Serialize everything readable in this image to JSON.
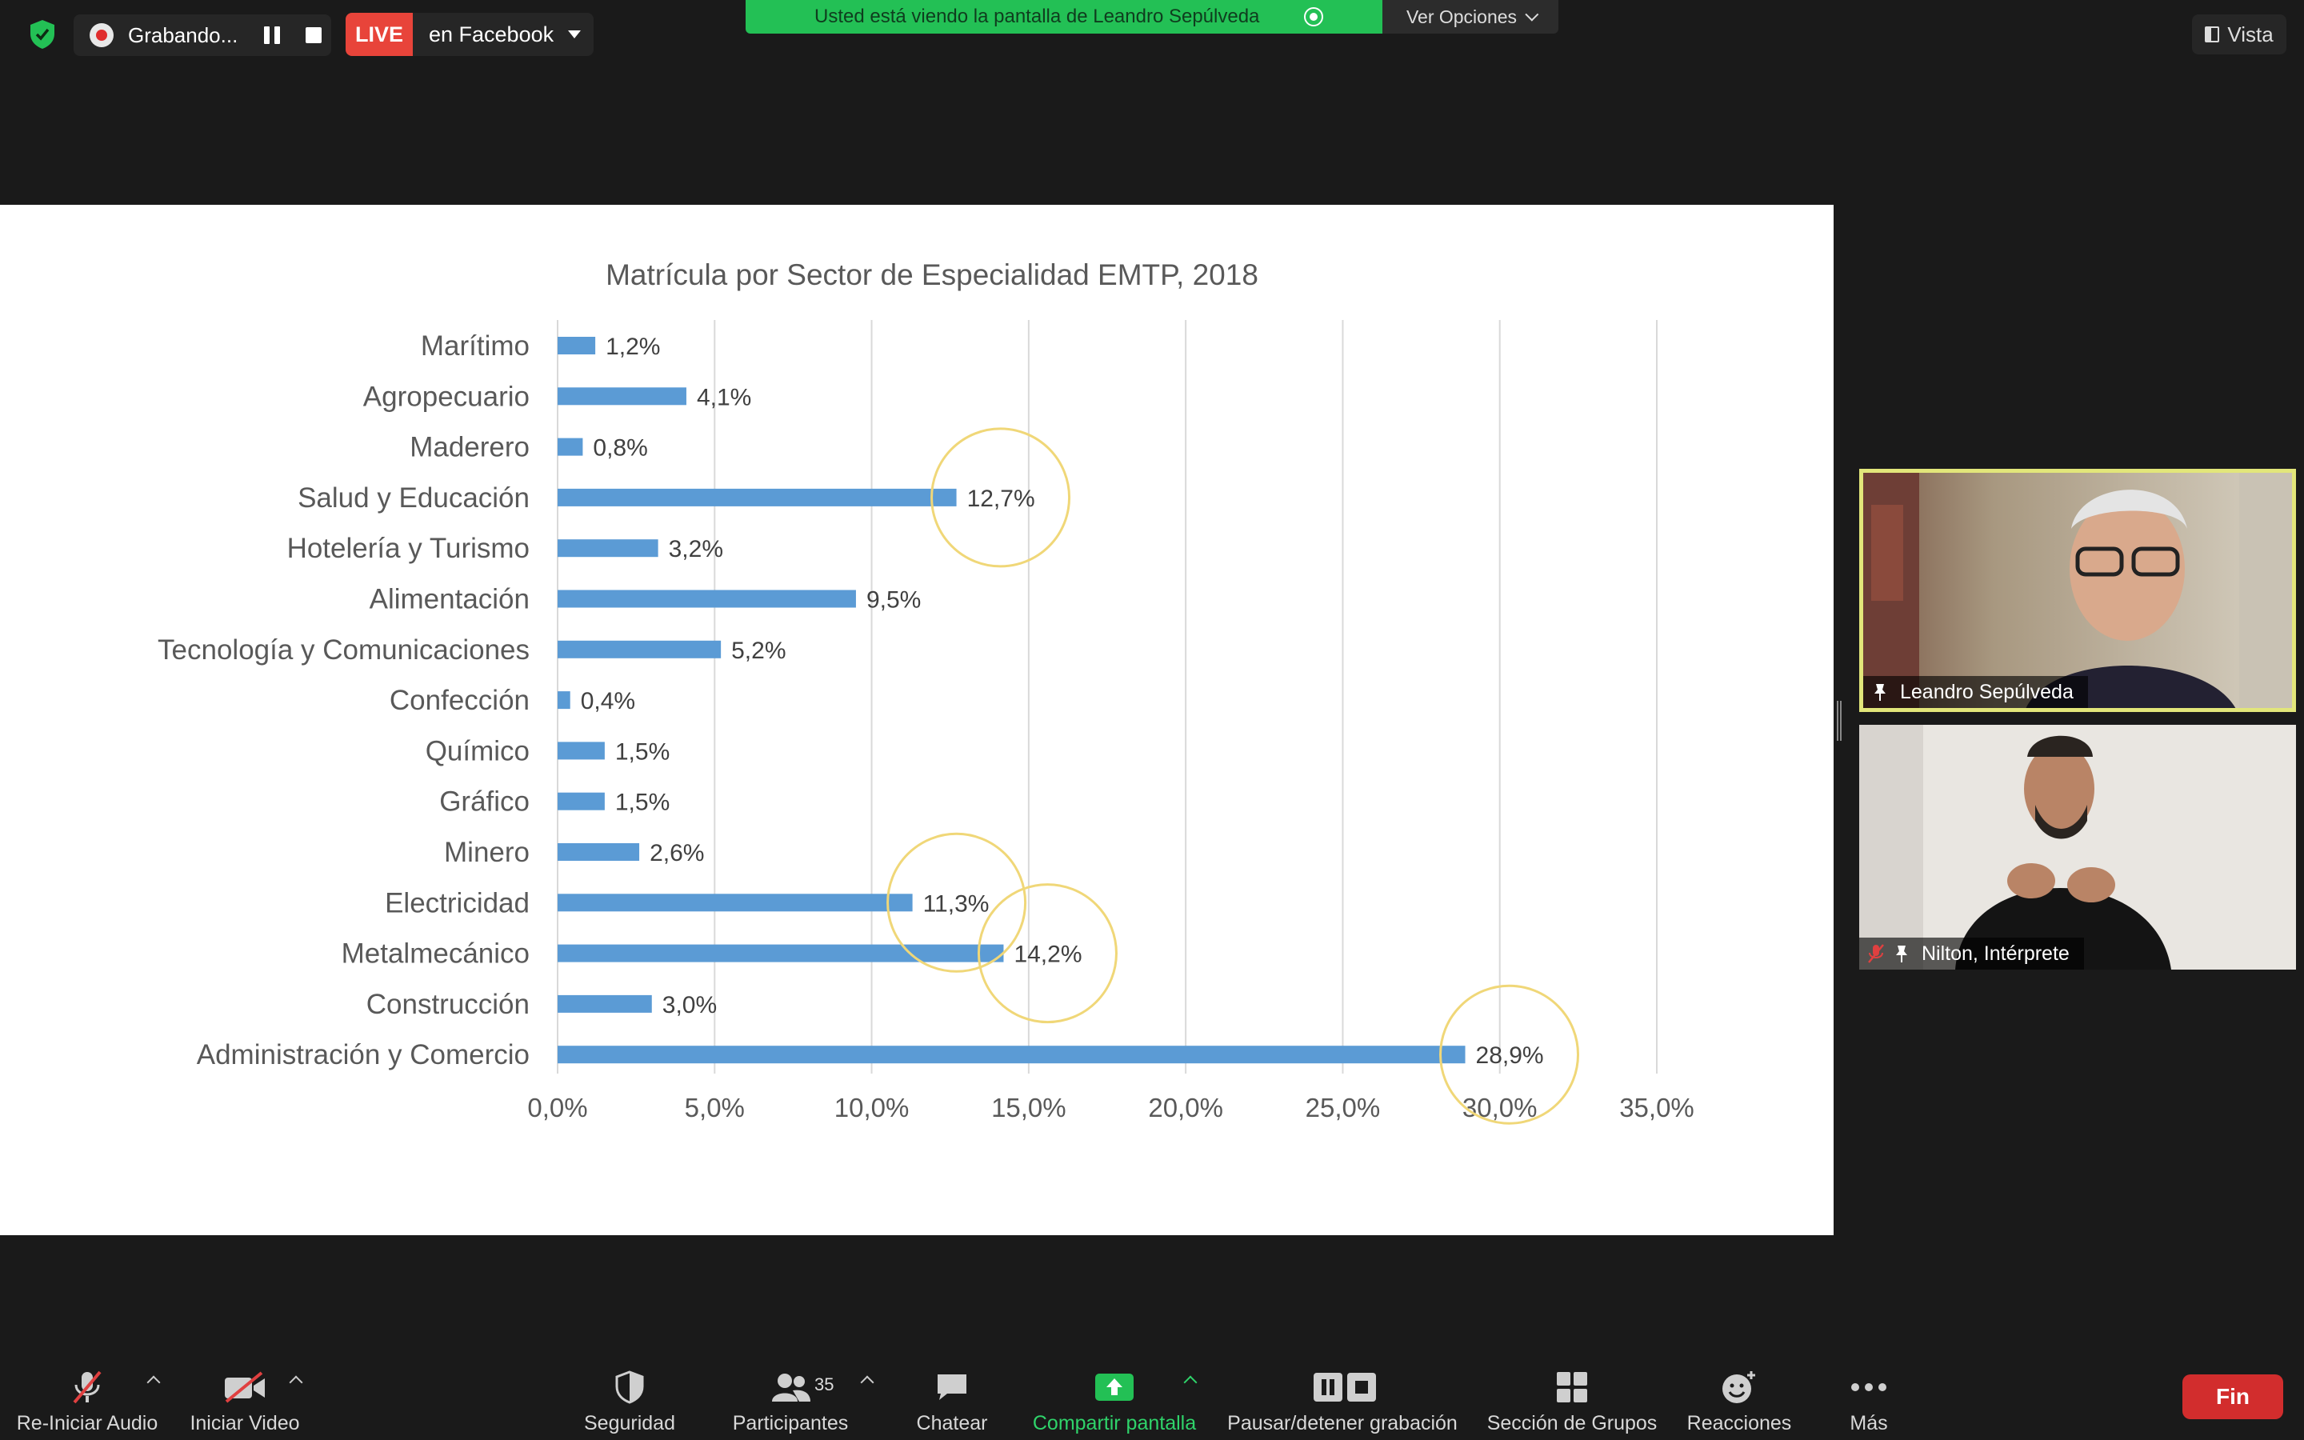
{
  "topbar": {
    "recording_label": "Grabando...",
    "live_label": "LIVE",
    "live_destination": "en Facebook",
    "share_banner_text": "Usted está viendo la pantalla de Leandro Sepúlveda",
    "view_options_label": "Ver Opciones",
    "view_button_label": "Vista"
  },
  "chart_data": {
    "type": "bar",
    "orientation": "horizontal",
    "title": "Matrícula por Sector de Especialidad EMTP, 2018",
    "categories": [
      "Marítimo",
      "Agropecuario",
      "Maderero",
      "Salud y Educación",
      "Hotelería y Turismo",
      "Alimentación",
      "Tecnología y Comunicaciones",
      "Confección",
      "Químico",
      "Gráfico",
      "Minero",
      "Electricidad",
      "Metalmecánico",
      "Construcción",
      "Administración y Comercio"
    ],
    "values": [
      1.2,
      4.1,
      0.8,
      12.7,
      3.2,
      9.5,
      5.2,
      0.4,
      1.5,
      1.5,
      2.6,
      11.3,
      14.2,
      3.0,
      28.9
    ],
    "value_labels": [
      "1,2%",
      "4,1%",
      "0,8%",
      "12,7%",
      "3,2%",
      "9,5%",
      "5,2%",
      "0,4%",
      "1,5%",
      "1,5%",
      "2,6%",
      "11,3%",
      "14,2%",
      "3,0%",
      "28,9%"
    ],
    "xlim": [
      0,
      35
    ],
    "xticks": [
      0,
      5,
      10,
      15,
      20,
      25,
      30,
      35
    ],
    "xtick_labels": [
      "0,0%",
      "5,0%",
      "10,0%",
      "15,0%",
      "20,0%",
      "25,0%",
      "30,0%",
      "35,0%"
    ],
    "grid": "vertical",
    "bar_color": "#5b9bd5",
    "highlight_circles": [
      "Salud y Educación",
      "Electricidad",
      "Metalmecánico",
      "Administración y Comercio"
    ],
    "highlight_color": "#f0d778"
  },
  "participants": [
    {
      "name": "Leandro Sepúlveda",
      "active_speaker": true
    },
    {
      "name": "Nilton, Intérprete",
      "muted": true
    }
  ],
  "toolbar": {
    "audio_label": "Re-Iniciar Audio",
    "video_label": "Iniciar Video",
    "security_label": "Seguridad",
    "participants_label": "Participantes",
    "participants_count": "35",
    "chat_label": "Chatear",
    "share_label": "Compartir pantalla",
    "record_label": "Pausar/detener grabación",
    "breakout_label": "Sección de Grupos",
    "reactions_label": "Reacciones",
    "more_label": "Más",
    "end_label": "Fin"
  },
  "colors": {
    "share_green": "#23c055",
    "live_red": "#e8443a",
    "end_red": "#d22d2d",
    "speaker_border": "#e2e67a"
  }
}
